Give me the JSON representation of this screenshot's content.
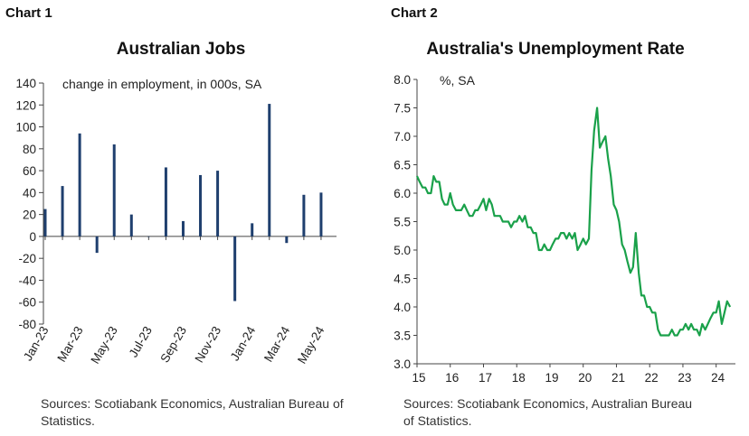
{
  "chart_data": [
    {
      "type": "bar",
      "label": "Chart 1",
      "title": "Australian Jobs",
      "note": "change in employment, in 000s, SA",
      "ylim": [
        -80,
        140
      ],
      "yticks": [
        -80,
        -60,
        -40,
        -20,
        0,
        20,
        40,
        60,
        80,
        100,
        120,
        140
      ],
      "color": "#1f3f6e",
      "categories": [
        "Jan-23",
        "Feb-23",
        "Mar-23",
        "Apr-23",
        "May-23",
        "Jun-23",
        "Jul-23",
        "Aug-23",
        "Sep-23",
        "Oct-23",
        "Nov-23",
        "Dec-23",
        "Jan-24",
        "Feb-24",
        "Mar-24",
        "Apr-24",
        "May-24"
      ],
      "xtick_labels": [
        "Jan-23",
        "Mar-23",
        "May-23",
        "Jul-23",
        "Sep-23",
        "Nov-23",
        "Jan-24",
        "Mar-24",
        "May-24"
      ],
      "values": [
        25,
        46,
        94,
        -15,
        84,
        20,
        0,
        63,
        14,
        56,
        60,
        -59,
        12,
        121,
        -6,
        38,
        40
      ],
      "source": "Sources: Scotiabank Economics, Australian Bureau of Statistics."
    },
    {
      "type": "line",
      "label": "Chart 2",
      "title": "Australia's Unemployment Rate",
      "note": "%, SA",
      "ylim": [
        3.0,
        8.0
      ],
      "yticks": [
        3.0,
        3.5,
        4.0,
        4.5,
        5.0,
        5.5,
        6.0,
        6.5,
        7.0,
        7.5,
        8.0
      ],
      "xlim": [
        2015.0,
        2024.58
      ],
      "xticks": [
        "15",
        "16",
        "17",
        "18",
        "19",
        "20",
        "21",
        "22",
        "23",
        "24"
      ],
      "color": "#1aa14a",
      "series": [
        {
          "x": [
            2015.0,
            2015.08,
            2015.17,
            2015.25,
            2015.33,
            2015.42,
            2015.5,
            2015.58,
            2015.67,
            2015.75,
            2015.83,
            2015.92,
            2016.0,
            2016.08,
            2016.17,
            2016.25,
            2016.33,
            2016.42,
            2016.5,
            2016.58,
            2016.67,
            2016.75,
            2016.83,
            2016.92,
            2017.0,
            2017.08,
            2017.17,
            2017.25,
            2017.33,
            2017.42,
            2017.5,
            2017.58,
            2017.67,
            2017.75,
            2017.83,
            2017.92,
            2018.0,
            2018.08,
            2018.17,
            2018.25,
            2018.33,
            2018.42,
            2018.5,
            2018.58,
            2018.67,
            2018.75,
            2018.83,
            2018.92,
            2019.0,
            2019.08,
            2019.17,
            2019.25,
            2019.33,
            2019.42,
            2019.5,
            2019.58,
            2019.67,
            2019.75,
            2019.83,
            2019.92,
            2020.0,
            2020.08,
            2020.17,
            2020.25,
            2020.33,
            2020.42,
            2020.5,
            2020.58,
            2020.67,
            2020.75,
            2020.83,
            2020.92,
            2021.0,
            2021.08,
            2021.17,
            2021.25,
            2021.33,
            2021.42,
            2021.5,
            2021.58,
            2021.67,
            2021.75,
            2021.83,
            2021.92,
            2022.0,
            2022.08,
            2022.17,
            2022.25,
            2022.33,
            2022.42,
            2022.5,
            2022.58,
            2022.67,
            2022.75,
            2022.83,
            2022.92,
            2023.0,
            2023.08,
            2023.17,
            2023.25,
            2023.33,
            2023.42,
            2023.5,
            2023.58,
            2023.67,
            2023.75,
            2023.83,
            2023.92,
            2024.0,
            2024.08,
            2024.17,
            2024.25,
            2024.33,
            2024.42
          ],
          "y": [
            6.3,
            6.2,
            6.1,
            6.1,
            6.0,
            6.0,
            6.3,
            6.2,
            6.2,
            5.9,
            5.8,
            5.8,
            6.0,
            5.8,
            5.7,
            5.7,
            5.7,
            5.8,
            5.7,
            5.6,
            5.6,
            5.7,
            5.7,
            5.8,
            5.9,
            5.7,
            5.9,
            5.8,
            5.6,
            5.6,
            5.6,
            5.5,
            5.5,
            5.5,
            5.4,
            5.5,
            5.5,
            5.6,
            5.5,
            5.6,
            5.4,
            5.4,
            5.3,
            5.3,
            5.0,
            5.0,
            5.1,
            5.0,
            5.0,
            5.1,
            5.2,
            5.2,
            5.3,
            5.3,
            5.2,
            5.3,
            5.2,
            5.3,
            5.0,
            5.1,
            5.2,
            5.1,
            5.2,
            6.4,
            7.1,
            7.5,
            6.8,
            6.9,
            7.0,
            6.6,
            6.3,
            5.8,
            5.7,
            5.5,
            5.1,
            5.0,
            4.8,
            4.6,
            4.7,
            5.3,
            4.6,
            4.2,
            4.2,
            4.0,
            4.0,
            3.9,
            3.9,
            3.6,
            3.5,
            3.5,
            3.5,
            3.5,
            3.6,
            3.5,
            3.5,
            3.6,
            3.6,
            3.7,
            3.6,
            3.7,
            3.6,
            3.6,
            3.5,
            3.7,
            3.6,
            3.7,
            3.8,
            3.9,
            3.9,
            4.1,
            3.7,
            3.9,
            4.1,
            4.0
          ]
        }
      ],
      "source": "Sources: Scotiabank Economics, Australian Bureau of Statistics."
    }
  ]
}
